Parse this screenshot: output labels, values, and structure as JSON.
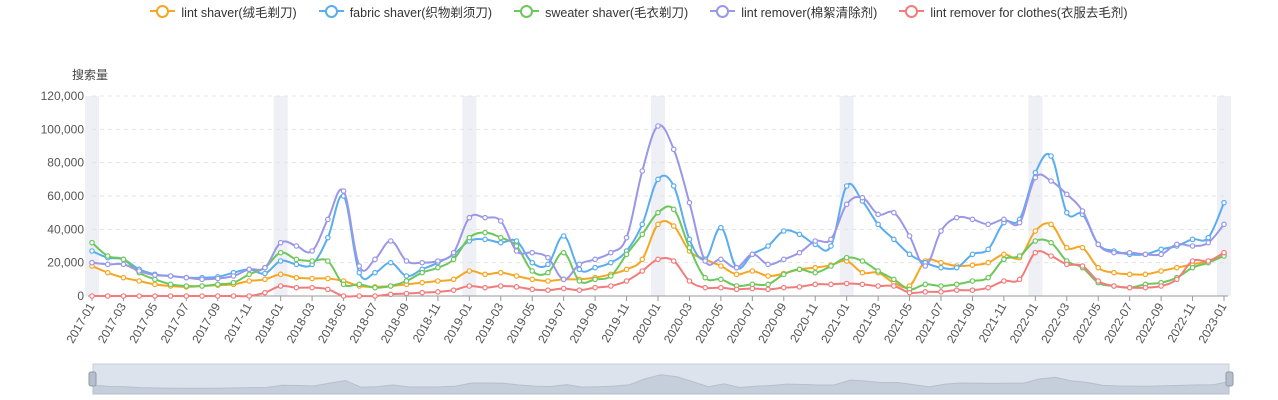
{
  "chart_data": {
    "type": "line",
    "ylabel": "搜索量",
    "ylim": [
      0,
      120000
    ],
    "yticks": [
      "0",
      "20,000",
      "40,000",
      "60,000",
      "80,000",
      "100,000",
      "120,000"
    ],
    "grid": true,
    "legend_position": "top-center",
    "x": [
      "2017-01",
      "2017-02",
      "2017-03",
      "2017-04",
      "2017-05",
      "2017-06",
      "2017-07",
      "2017-08",
      "2017-09",
      "2017-10",
      "2017-11",
      "2017-12",
      "2018-01",
      "2018-02",
      "2018-03",
      "2018-04",
      "2018-05",
      "2018-06",
      "2018-07",
      "2018-08",
      "2018-09",
      "2018-10",
      "2018-11",
      "2018-12",
      "2019-01",
      "2019-02",
      "2019-03",
      "2019-04",
      "2019-05",
      "2019-06",
      "2019-07",
      "2019-08",
      "2019-09",
      "2019-10",
      "2019-11",
      "2019-12",
      "2020-01",
      "2020-02",
      "2020-03",
      "2020-04",
      "2020-05",
      "2020-06",
      "2020-07",
      "2020-08",
      "2020-09",
      "2020-10",
      "2020-11",
      "2020-12",
      "2021-01",
      "2021-02",
      "2021-03",
      "2021-04",
      "2021-05",
      "2021-06",
      "2021-07",
      "2021-08",
      "2021-09",
      "2021-10",
      "2021-11",
      "2021-12",
      "2022-01",
      "2022-02",
      "2022-03",
      "2022-04",
      "2022-05",
      "2022-06",
      "2022-07",
      "2022-08",
      "2022-09",
      "2022-10",
      "2022-11",
      "2022-12",
      "2023-01"
    ],
    "x_tick_labels": [
      "2017-01",
      "2017-03",
      "2017-05",
      "2017-07",
      "2017-09",
      "2017-11",
      "2018-01",
      "2018-03",
      "2018-05",
      "2018-07",
      "2018-09",
      "2018-11",
      "2019-01",
      "2019-03",
      "2019-05",
      "2019-07",
      "2019-09",
      "2019-11",
      "2020-01",
      "2020-03",
      "2020-05",
      "2020-07",
      "2020-09",
      "2020-11",
      "2021-01",
      "2021-03",
      "2021-05",
      "2021-07",
      "2021-09",
      "2021-11",
      "2022-01",
      "2022-03",
      "2022-05",
      "2022-07",
      "2022-09",
      "2022-11",
      "2023-01"
    ],
    "highlighted_months": [
      "2017-01",
      "2018-01",
      "2019-01",
      "2020-01",
      "2021-01",
      "2022-01",
      "2023-01"
    ],
    "series": [
      {
        "name": "lint shaver(绒毛剃刀)",
        "color": "#f5a623",
        "values": [
          18000,
          14000,
          11000,
          9000,
          7000,
          6000,
          5500,
          6000,
          6500,
          7000,
          9000,
          10000,
          13000,
          11000,
          10500,
          10500,
          9000,
          6000,
          5500,
          6000,
          7000,
          8000,
          9000,
          10000,
          15000,
          13000,
          14000,
          12000,
          10000,
          9000,
          10000,
          10000,
          11000,
          13000,
          16000,
          22000,
          43000,
          42000,
          27000,
          22000,
          18000,
          13000,
          15000,
          12000,
          13500,
          16000,
          17000,
          18500,
          21000,
          14000,
          14000,
          8000,
          6000,
          21000,
          20000,
          18000,
          18500,
          20000,
          25000,
          23000,
          39000,
          43000,
          29000,
          29000,
          17000,
          14000,
          13000,
          13000,
          15000,
          17000,
          19000,
          21000,
          25000
        ]
      },
      {
        "name": "fabric shaver(织物剃须刀)",
        "color": "#5aadef",
        "values": [
          27000,
          23000,
          22000,
          16000,
          13000,
          12000,
          11000,
          11000,
          11500,
          14000,
          16000,
          13500,
          21000,
          19000,
          19000,
          35000,
          60000,
          14000,
          14000,
          20000,
          12000,
          16000,
          20000,
          25000,
          33000,
          34000,
          32000,
          33000,
          20000,
          19000,
          36000,
          16000,
          17000,
          20000,
          27000,
          43000,
          70000,
          66000,
          34000,
          22000,
          41000,
          17000,
          25000,
          30000,
          39000,
          37000,
          31000,
          30000,
          66000,
          57000,
          43000,
          34000,
          25000,
          20000,
          17000,
          17000,
          25000,
          28000,
          44000,
          46000,
          74000,
          84000,
          50000,
          49000,
          31000,
          27000,
          25000,
          25000,
          28000,
          30000,
          34000,
          35000,
          56000
        ]
      },
      {
        "name": "sweater shaver(毛衣剃刀)",
        "color": "#6dc75a",
        "values": [
          32000,
          24000,
          22000,
          14000,
          10000,
          7000,
          6000,
          6000,
          7000,
          8000,
          13000,
          17000,
          26000,
          22000,
          21000,
          21000,
          7000,
          7000,
          5000,
          6000,
          9000,
          14000,
          17000,
          22000,
          35000,
          38000,
          35000,
          30000,
          15000,
          14000,
          26000,
          9000,
          10000,
          12000,
          25000,
          37000,
          50000,
          52000,
          29000,
          11000,
          10000,
          6000,
          7000,
          7000,
          13000,
          16000,
          14000,
          18000,
          23000,
          21000,
          15000,
          10000,
          4000,
          7000,
          6000,
          7000,
          9000,
          11000,
          22000,
          24000,
          33000,
          32000,
          21000,
          17000,
          8000,
          6000,
          5000,
          7000,
          8000,
          11000,
          17000,
          20000,
          24000
        ]
      },
      {
        "name": "lint remover(棉絮清除剂)",
        "color": "#9a97e8",
        "values": [
          20000,
          19000,
          19000,
          15000,
          12500,
          12000,
          11000,
          10000,
          10500,
          12000,
          16000,
          17000,
          32000,
          30000,
          27000,
          46000,
          63000,
          18000,
          22000,
          33000,
          21000,
          20000,
          21000,
          26000,
          47000,
          47000,
          45000,
          27000,
          26000,
          23000,
          10000,
          19000,
          22000,
          26000,
          35000,
          75000,
          102000,
          88000,
          56000,
          21000,
          22000,
          17000,
          25000,
          19000,
          22000,
          26000,
          33000,
          34000,
          55000,
          59000,
          49000,
          50000,
          36000,
          18000,
          39000,
          47000,
          46000,
          43000,
          46000,
          44000,
          71000,
          69000,
          61000,
          51000,
          31000,
          26000,
          26000,
          25000,
          25000,
          31000,
          30000,
          32000,
          43000
        ]
      },
      {
        "name": "lint remover for clothes(衣服去毛剂)",
        "color": "#f27c7c",
        "values": [
          0,
          0,
          0,
          0,
          0,
          0,
          0,
          0,
          0,
          0,
          0,
          2000,
          6000,
          5000,
          5000,
          4000,
          0,
          0,
          0,
          1000,
          1500,
          2000,
          2500,
          3500,
          6000,
          5000,
          6000,
          5500,
          4000,
          3500,
          4500,
          3500,
          5000,
          6000,
          9000,
          15000,
          22000,
          21000,
          9000,
          5000,
          5000,
          4000,
          4500,
          4000,
          5000,
          5500,
          7000,
          7000,
          7500,
          7000,
          6000,
          6000,
          2000,
          2500,
          2500,
          3500,
          3500,
          5000,
          9000,
          10000,
          26000,
          24000,
          19000,
          18000,
          9000,
          6000,
          5000,
          5000,
          6000,
          10000,
          21000,
          21000,
          26000
        ]
      }
    ]
  }
}
